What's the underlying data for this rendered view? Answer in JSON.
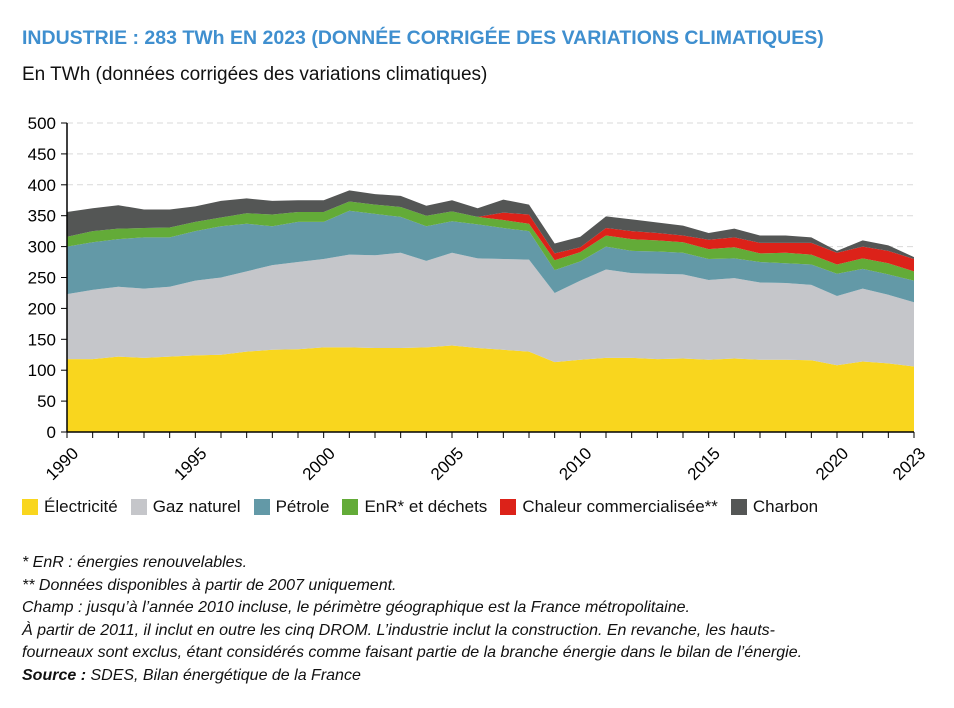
{
  "title": "INDUSTRIE : 283 TWh EN 2023 (DONNÉE CORRIGÉE DES VARIATIONS CLIMATIQUES)",
  "subtitle": "En TWh (données corrigées des variations climatiques)",
  "chart_data": {
    "type": "area",
    "stacked": true,
    "ylabel": "En TWh (données corrigées des variations climatiques)",
    "ylim": [
      0,
      500
    ],
    "yticks": [
      0,
      50,
      100,
      150,
      200,
      250,
      300,
      350,
      400,
      450,
      500
    ],
    "xlim": [
      1990,
      2023
    ],
    "xtick_labels": [
      "1990",
      "1995",
      "2000",
      "2005",
      "2010",
      "2015",
      "2020",
      "2023"
    ],
    "grid": "horizontal dashed",
    "legend_position": "bottom",
    "x": [
      1990,
      1991,
      1992,
      1993,
      1994,
      1995,
      1996,
      1997,
      1998,
      1999,
      2000,
      2001,
      2002,
      2003,
      2004,
      2005,
      2006,
      2007,
      2008,
      2009,
      2010,
      2011,
      2012,
      2013,
      2014,
      2015,
      2016,
      2017,
      2018,
      2019,
      2020,
      2021,
      2022,
      2023
    ],
    "series": [
      {
        "name": "Électricité",
        "color": "#f9d61e",
        "values": [
          118,
          118,
          122,
          120,
          122,
          124,
          125,
          130,
          133,
          134,
          137,
          137,
          136,
          136,
          137,
          140,
          136,
          133,
          130,
          113,
          117,
          120,
          120,
          118,
          119,
          117,
          119,
          117,
          117,
          116,
          108,
          114,
          111,
          106
        ]
      },
      {
        "name": "Gaz naturel",
        "color": "#c5c6ca",
        "values": [
          105,
          112,
          113,
          112,
          113,
          121,
          125,
          130,
          137,
          141,
          143,
          150,
          150,
          154,
          140,
          150,
          145,
          147,
          149,
          112,
          128,
          143,
          137,
          138,
          136,
          129,
          130,
          125,
          124,
          122,
          112,
          118,
          111,
          104
        ]
      },
      {
        "name": "Pétrole",
        "color": "#6399a7",
        "values": [
          77,
          77,
          77,
          83,
          80,
          80,
          83,
          77,
          63,
          65,
          60,
          71,
          67,
          58,
          56,
          51,
          55,
          50,
          46,
          37,
          31,
          37,
          36,
          36,
          35,
          34,
          32,
          33,
          32,
          33,
          36,
          32,
          33,
          35
        ]
      },
      {
        "name": "EnR* et déchets",
        "color": "#63ab38",
        "values": [
          16,
          18,
          17,
          15,
          16,
          15,
          14,
          17,
          19,
          16,
          16,
          15,
          15,
          16,
          17,
          16,
          12,
          13,
          12,
          16,
          15,
          18,
          19,
          18,
          17,
          16,
          18,
          14,
          17,
          16,
          15,
          17,
          18,
          15
        ]
      },
      {
        "name": "Chaleur commercialisée**",
        "color": "#dc2219",
        "values": [
          null,
          null,
          null,
          null,
          null,
          null,
          null,
          null,
          null,
          null,
          null,
          null,
          null,
          null,
          null,
          null,
          null,
          12,
          15,
          11,
          8,
          12,
          13,
          12,
          11,
          15,
          16,
          17,
          16,
          19,
          19,
          19,
          20,
          20
        ]
      },
      {
        "name": "Charbon",
        "color": "#545655",
        "values": [
          40,
          37,
          38,
          30,
          29,
          25,
          27,
          24,
          22,
          19,
          19,
          18,
          17,
          18,
          16,
          18,
          14,
          21,
          16,
          16,
          17,
          19,
          19,
          17,
          16,
          11,
          14,
          12,
          12,
          9,
          3,
          10,
          9,
          3
        ]
      }
    ]
  },
  "notes": {
    "line1": "* EnR : énergies renouvelables.",
    "line2": "** Données disponibles à partir de 2007 uniquement.",
    "line3": "Champ : jusqu’à l’année 2010 incluse, le périmètre géographique est la France métropolitaine.",
    "line4": "À partir de 2011, il inclut en outre les cinq DROM. L’industrie inclut la construction. En revanche, les hauts-",
    "line5": "fourneaux sont exclus, étant considérés comme faisant partie de la branche énergie dans le bilan de l’énergie.",
    "source_label": "Source :",
    "source_text": " SDES, Bilan énergétique de la France"
  }
}
